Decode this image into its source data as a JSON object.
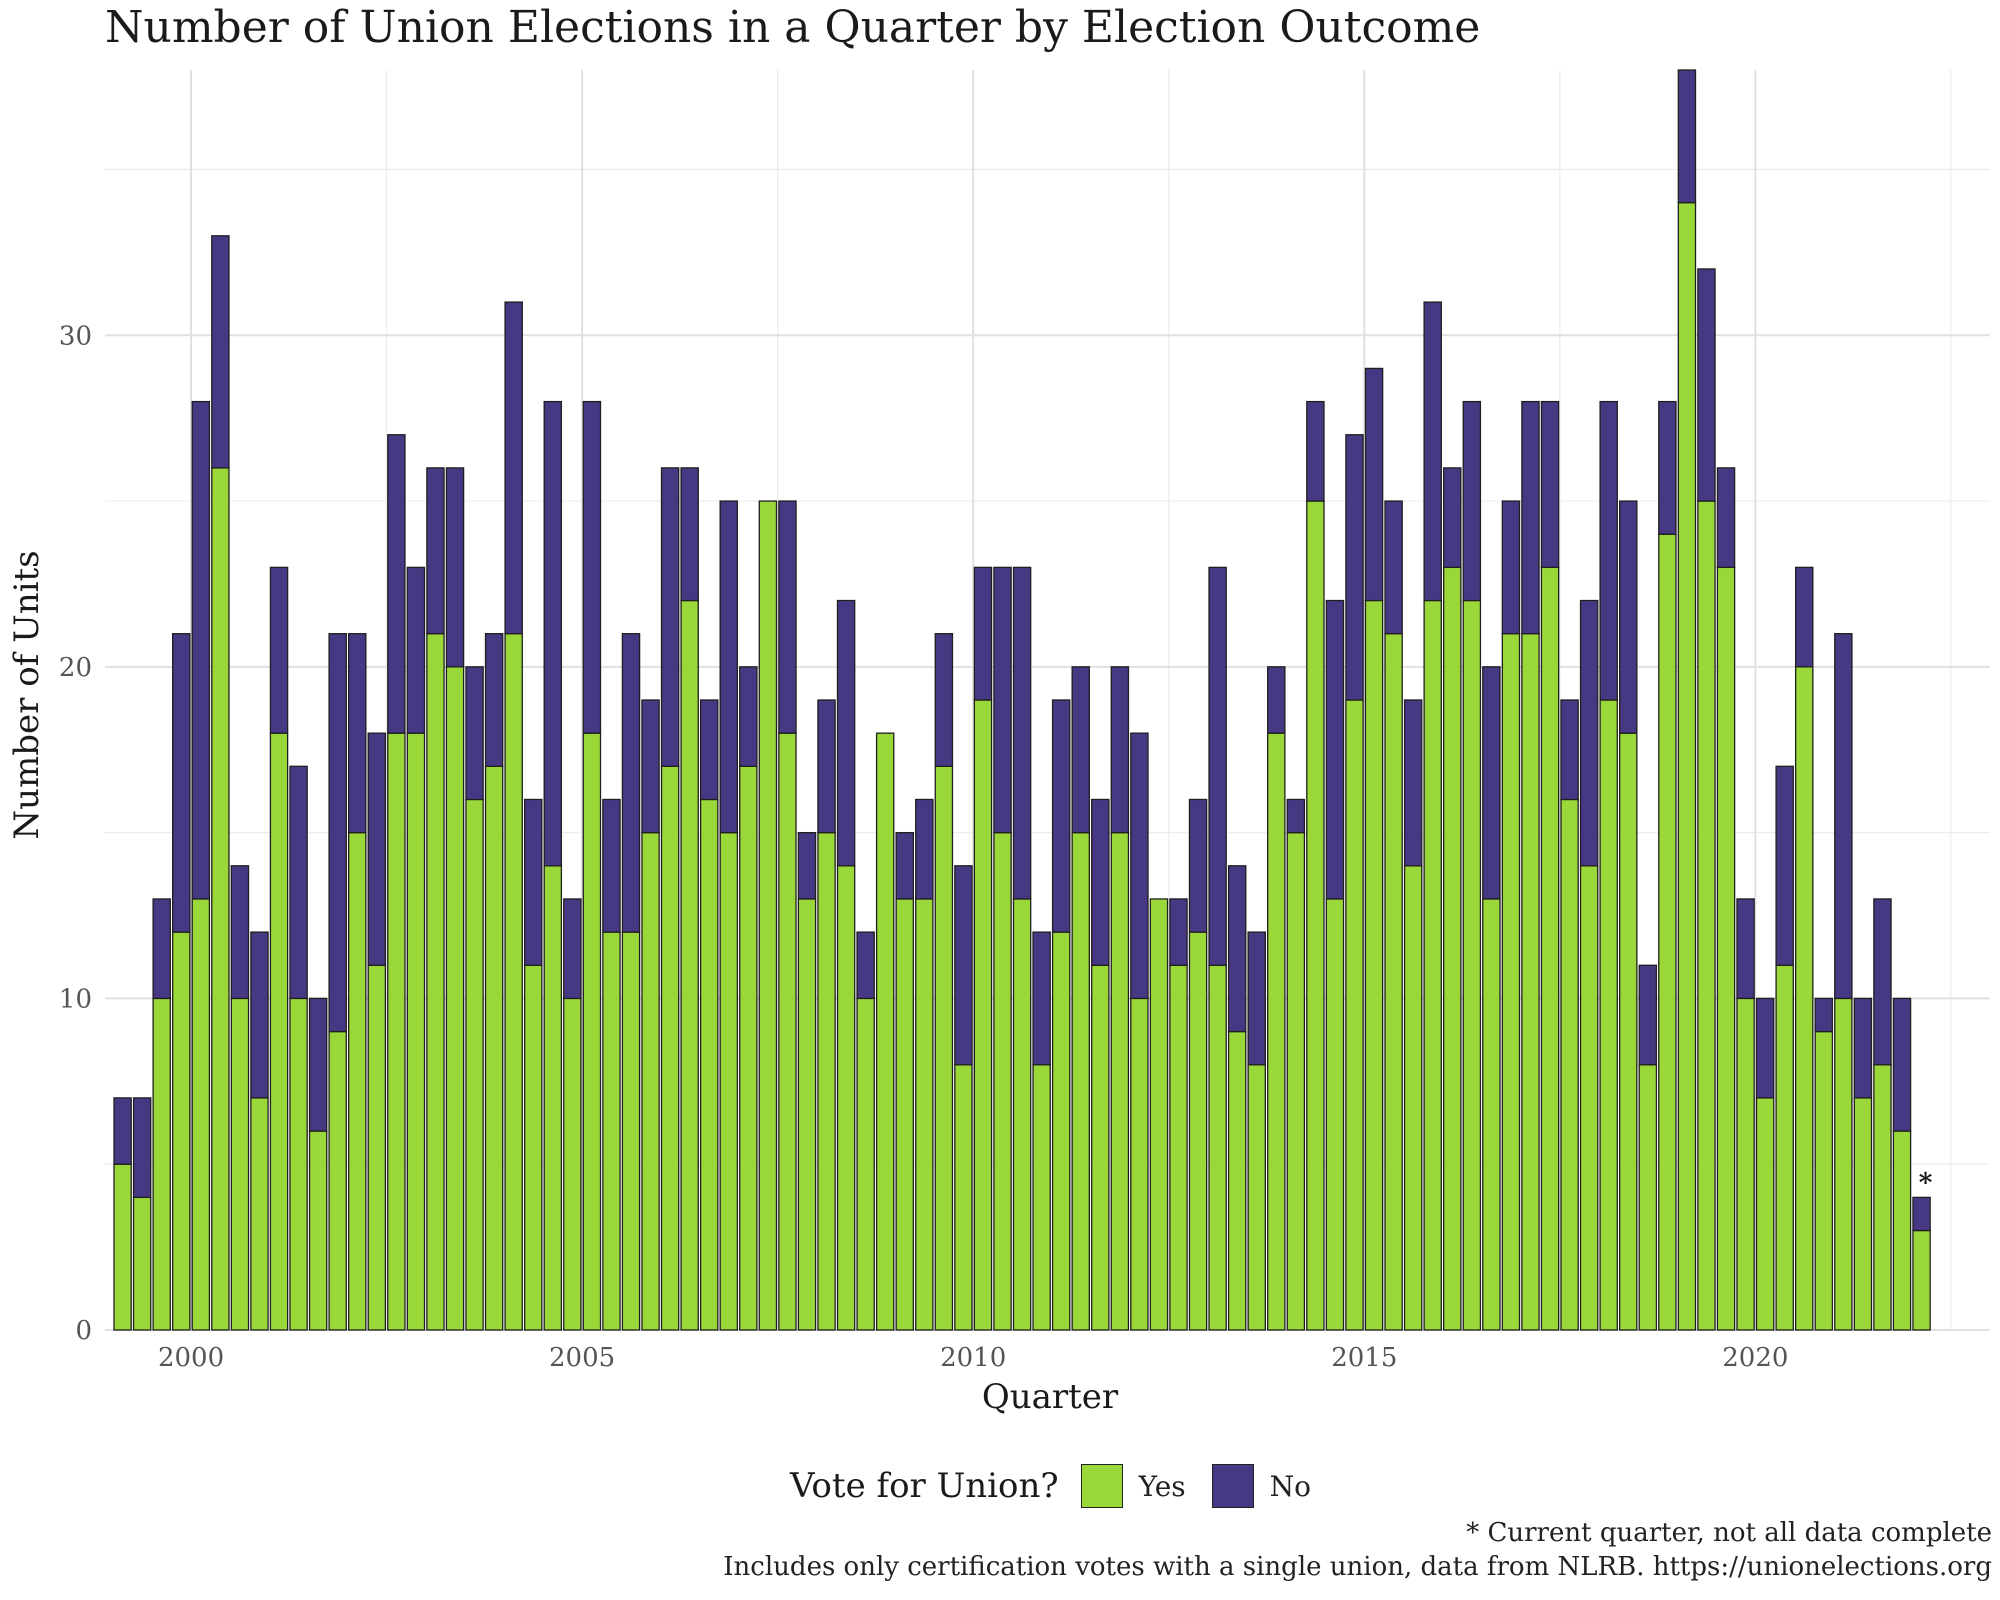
{
  "chart_data": {
    "type": "bar",
    "stacked": true,
    "title": "Number of Union Elections in a Quarter by Election Outcome",
    "xlabel": "Quarter",
    "ylabel": "Number of Units",
    "x_ticks": [
      "2000",
      "2005",
      "2010",
      "2015",
      "2020"
    ],
    "y_ticks": [
      "0",
      "10",
      "20",
      "30"
    ],
    "ylim": [
      0,
      38
    ],
    "xlim": [
      1998.9,
      2023.0
    ],
    "grid": true,
    "legend": {
      "title": "Vote for Union?",
      "position": "bottom"
    },
    "series": [
      {
        "name": "Yes",
        "color": "#9ad83a",
        "values": [
          5,
          4,
          10,
          12,
          13,
          26,
          10,
          7,
          18,
          10,
          6,
          9,
          15,
          11,
          18,
          18,
          21,
          20,
          16,
          17,
          21,
          11,
          14,
          10,
          18,
          12,
          12,
          15,
          17,
          22,
          16,
          15,
          17,
          25,
          18,
          13,
          15,
          14,
          10,
          18,
          13,
          13,
          17,
          8,
          19,
          15,
          13,
          8,
          12,
          15,
          11,
          15,
          10,
          13,
          11,
          12,
          11,
          9,
          8,
          18,
          15,
          25,
          13,
          19,
          22,
          21,
          14,
          22,
          23,
          22,
          13,
          21,
          21,
          23,
          16,
          14,
          19,
          18,
          8,
          24,
          34,
          25,
          23,
          10,
          7,
          11,
          20,
          9,
          10,
          7,
          8,
          6,
          3
        ]
      },
      {
        "name": "No",
        "color": "#473883",
        "values": [
          2,
          3,
          3,
          9,
          15,
          7,
          4,
          5,
          5,
          7,
          4,
          12,
          6,
          7,
          9,
          5,
          5,
          6,
          4,
          4,
          10,
          5,
          14,
          3,
          10,
          4,
          9,
          4,
          9,
          4,
          3,
          10,
          3,
          0,
          7,
          2,
          4,
          8,
          2,
          0,
          2,
          3,
          4,
          6,
          4,
          8,
          10,
          4,
          7,
          5,
          5,
          5,
          8,
          0,
          2,
          4,
          12,
          5,
          4,
          2,
          1,
          3,
          9,
          8,
          7,
          4,
          5,
          9,
          3,
          6,
          7,
          4,
          7,
          5,
          3,
          8,
          9,
          7,
          3,
          4,
          4,
          7,
          3,
          3,
          3,
          6,
          3,
          1,
          11,
          3,
          5,
          4,
          1
        ]
      }
    ],
    "x_start": 1999.125,
    "x_step": 0.25,
    "annotation": {
      "text": "*",
      "index": 92
    }
  },
  "captions": {
    "note": "* Current quarter, not all data complete",
    "source": "Includes only certification votes with a single union, data from NLRB. https://unionelections.org"
  }
}
